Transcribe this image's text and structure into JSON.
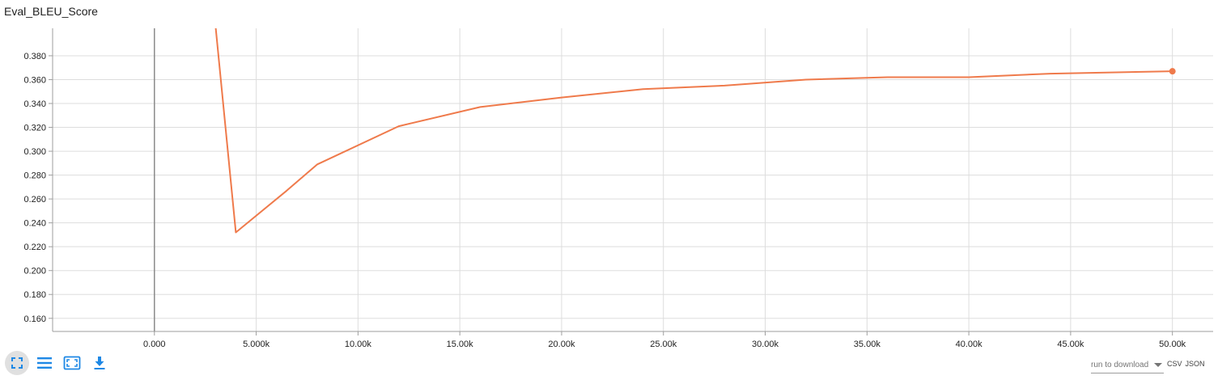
{
  "title": "Eval_BLEU_Score",
  "chart_data": {
    "type": "line",
    "title": "Eval_BLEU_Score",
    "xlabel": "",
    "ylabel": "",
    "xlim": [
      -5000,
      52000
    ],
    "ylim": [
      0.149,
      0.403
    ],
    "x_ticks": [
      0,
      5000,
      10000,
      15000,
      20000,
      25000,
      30000,
      35000,
      40000,
      45000,
      50000
    ],
    "x_tick_labels": [
      "0.000",
      "5.000k",
      "10.00k",
      "15.00k",
      "20.00k",
      "25.00k",
      "30.00k",
      "35.00k",
      "40.00k",
      "45.00k",
      "50.00k"
    ],
    "y_ticks": [
      0.16,
      0.18,
      0.2,
      0.22,
      0.24,
      0.26,
      0.28,
      0.3,
      0.32,
      0.34,
      0.36,
      0.38
    ],
    "y_tick_labels": [
      "0.160",
      "0.180",
      "0.200",
      "0.220",
      "0.240",
      "0.260",
      "0.280",
      "0.300",
      "0.320",
      "0.340",
      "0.360",
      "0.380"
    ],
    "grid": true,
    "series": [
      {
        "color": "#ef7a4b",
        "x": [
          3000,
          4000,
          6500,
          8000,
          12000,
          16000,
          20000,
          24000,
          28000,
          32000,
          36000,
          40000,
          44000,
          50000
        ],
        "y": [
          0.405,
          0.232,
          0.267,
          0.289,
          0.321,
          0.337,
          0.345,
          0.352,
          0.355,
          0.36,
          0.362,
          0.362,
          0.365,
          0.367
        ]
      }
    ]
  },
  "toolbar": {
    "icons": [
      "fullscreen-icon",
      "list-icon",
      "fit-domain-icon",
      "download-icon"
    ]
  },
  "download": {
    "select_label": "run to download",
    "csv_label": "CSV",
    "json_label": "JSON"
  },
  "colors": {
    "line": "#ef7a4b",
    "grid": "#dddddd",
    "axis": "#9e9e9e",
    "icon": "#1e88e5"
  }
}
